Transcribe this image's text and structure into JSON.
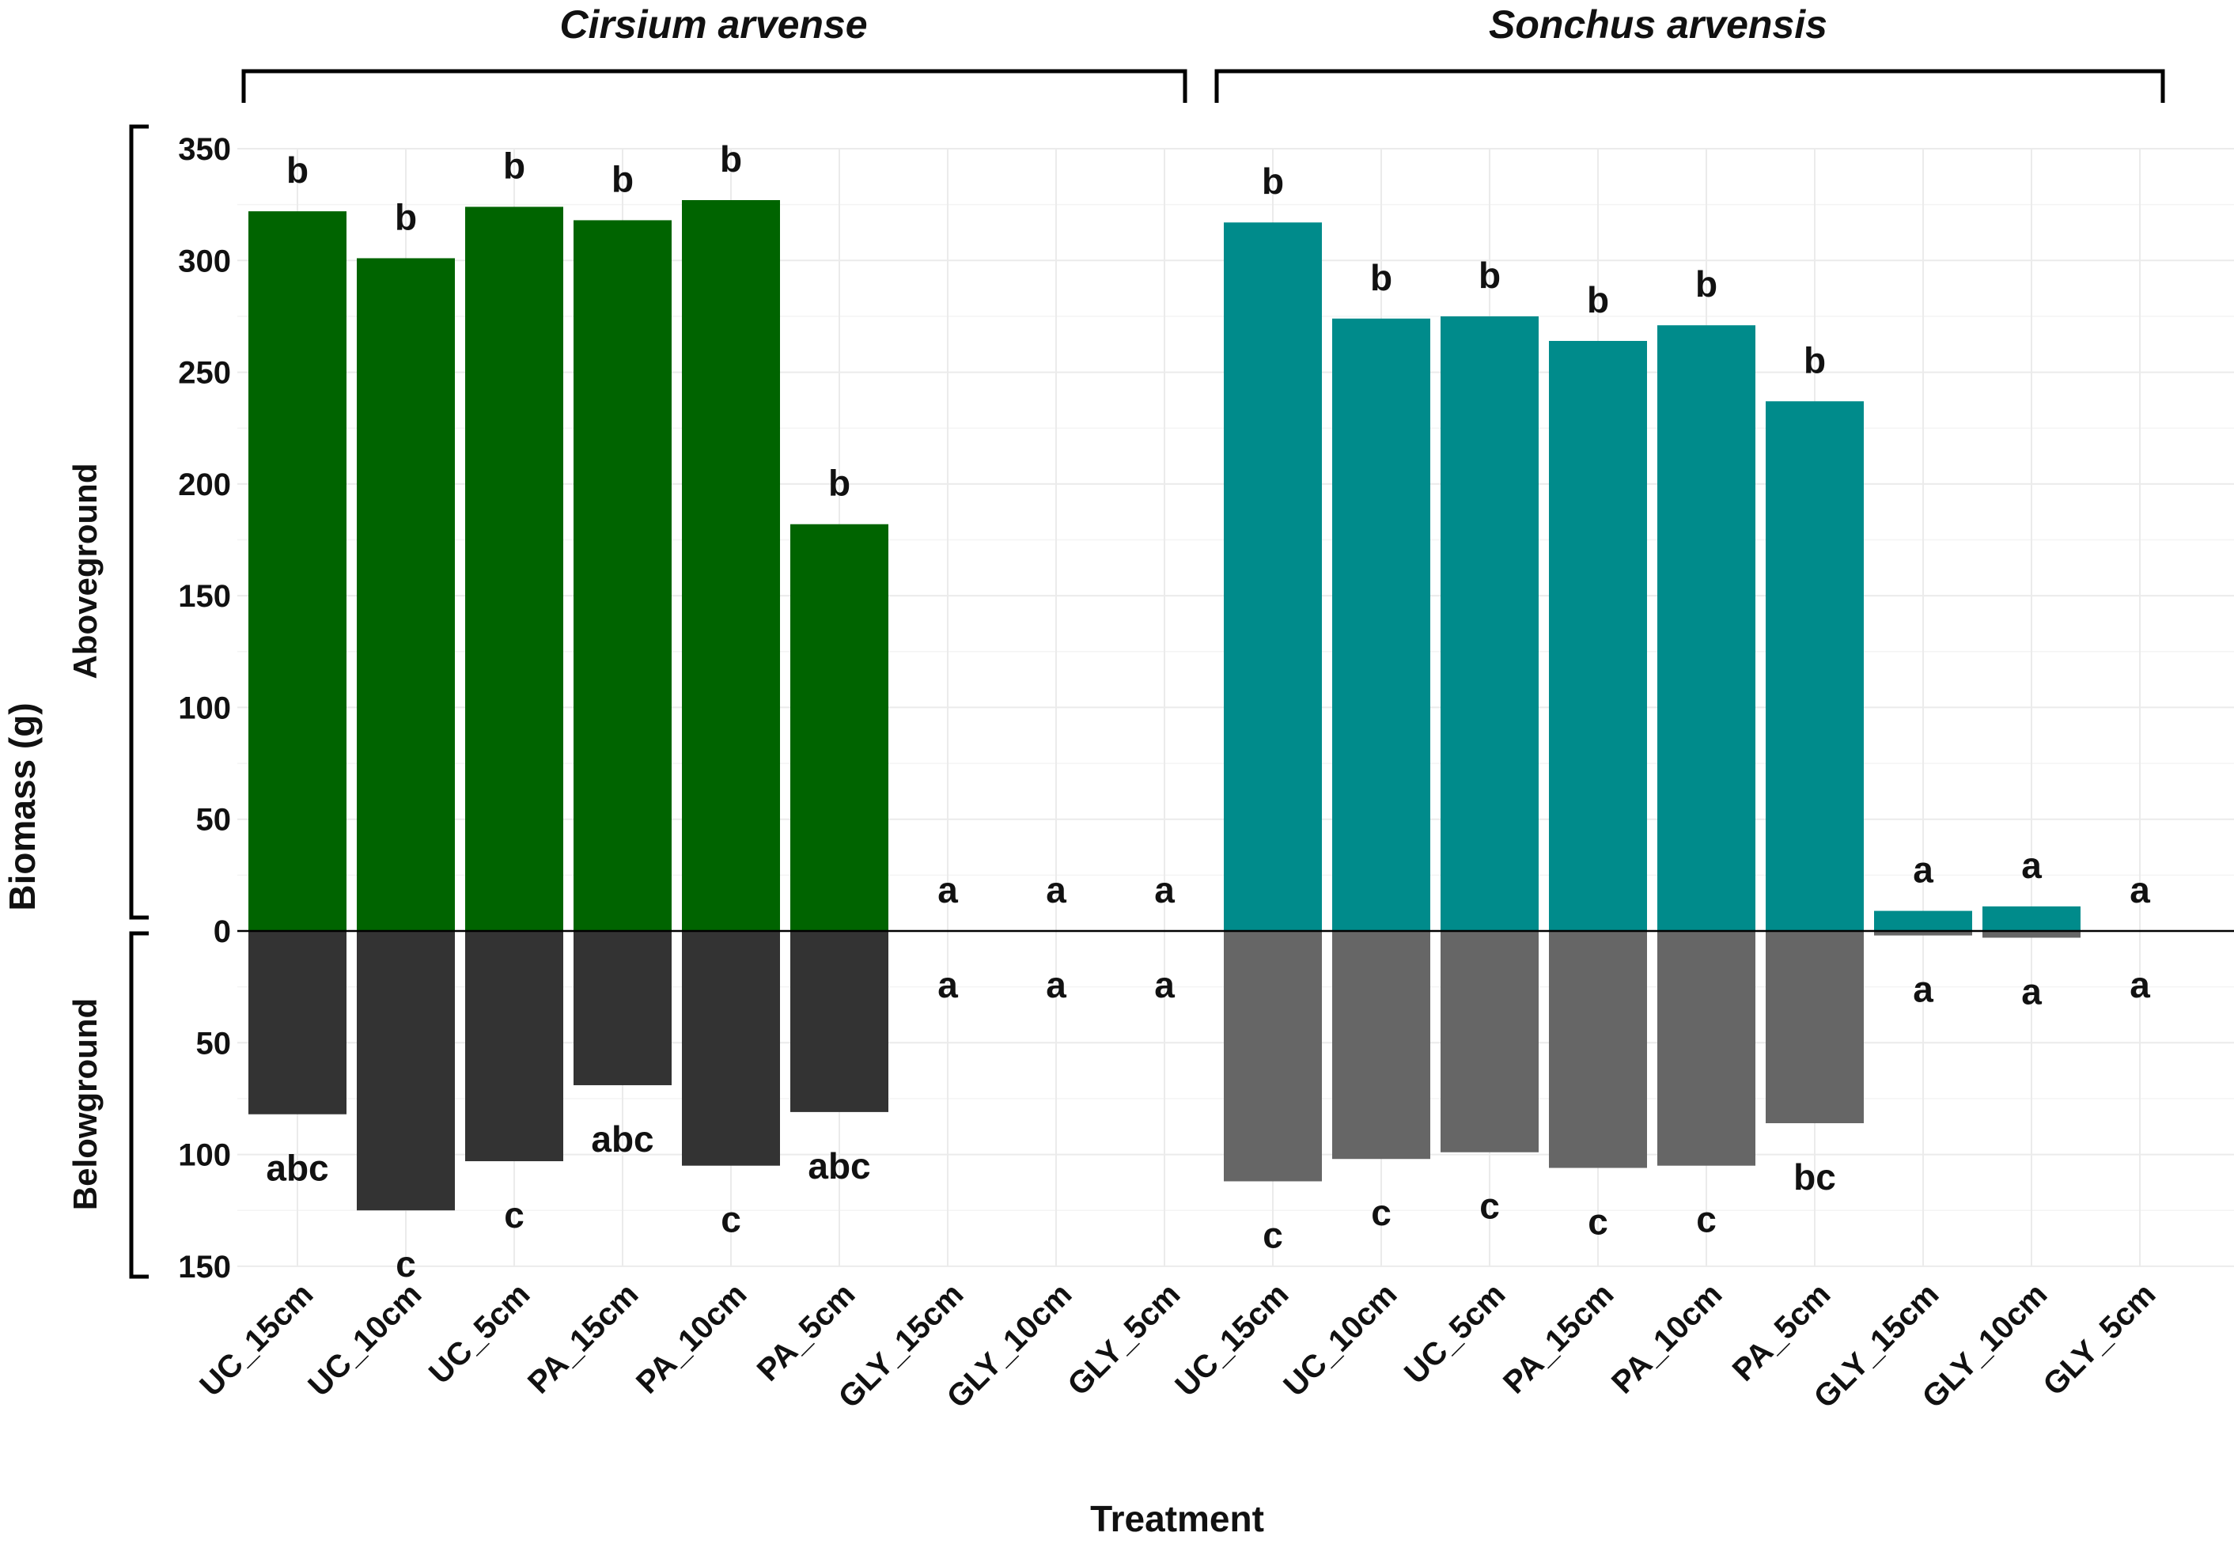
{
  "chart_data": {
    "type": "bar",
    "title": "",
    "xlabel": "Treatment",
    "ylabel": "Biomass (g)",
    "upper_label": "Aboveground",
    "lower_label": "Belowground",
    "ylim_above": [
      0,
      350
    ],
    "ylim_below": [
      0,
      150
    ],
    "yticks_above": [
      0,
      50,
      100,
      150,
      200,
      250,
      300,
      350
    ],
    "yticks_below": [
      50,
      100,
      150
    ],
    "grid": true,
    "panels": [
      {
        "species": "Cirsium arvense",
        "colors": {
          "above": "#006400",
          "below": "#333333"
        },
        "categories": [
          "UC_15cm",
          "UC_10cm",
          "UC_5cm",
          "PA_15cm",
          "PA_10cm",
          "PA_5cm",
          "GLY_15cm",
          "GLY_10cm",
          "GLY_5cm"
        ],
        "aboveground": [
          322,
          301,
          324,
          318,
          327,
          182,
          0,
          0,
          0
        ],
        "belowground": [
          82,
          125,
          103,
          69,
          105,
          81,
          0,
          0,
          0
        ],
        "above_letters": [
          "b",
          "b",
          "b",
          "b",
          "b",
          "b",
          "a",
          "a",
          "a"
        ],
        "below_letters": [
          "abc",
          "c",
          "c",
          "abc",
          "c",
          "abc",
          "a",
          "a",
          "a"
        ]
      },
      {
        "species": "Sonchus arvensis",
        "colors": {
          "above": "#008b8b",
          "below": "#666666"
        },
        "categories": [
          "UC_15cm",
          "UC_10cm",
          "UC_5cm",
          "PA_15cm",
          "PA_10cm",
          "PA_5cm",
          "GLY_15cm",
          "GLY_10cm",
          "GLY_5cm"
        ],
        "aboveground": [
          317,
          274,
          275,
          264,
          271,
          237,
          9,
          11,
          0
        ],
        "belowground": [
          112,
          102,
          99,
          106,
          105,
          86,
          2,
          3,
          0
        ],
        "above_letters": [
          "b",
          "b",
          "b",
          "b",
          "b",
          "b",
          "a",
          "a",
          "a"
        ],
        "below_letters": [
          "c",
          "c",
          "c",
          "c",
          "c",
          "bc",
          "a",
          "a",
          "a"
        ]
      }
    ]
  }
}
